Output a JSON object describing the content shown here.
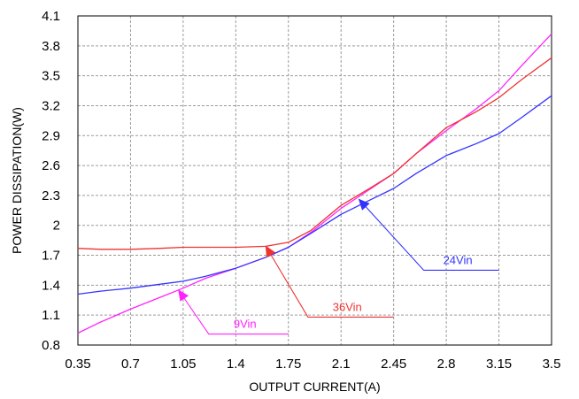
{
  "chart_data": {
    "type": "line",
    "title": "",
    "xlabel": "OUTPUT CURRENT(A)",
    "ylabel": "POWER DISSIPATION(W)",
    "xlim": [
      0.35,
      3.5
    ],
    "ylim": [
      0.8,
      4.1
    ],
    "grid": true,
    "xticks": [
      "0.35",
      "0.7",
      "1.05",
      "1.4",
      "1.75",
      "2.1",
      "2.45",
      "2.8",
      "3.15",
      "3.5"
    ],
    "yticks": [
      "4.1",
      "3.8",
      "3.5",
      "3.2",
      "2.9",
      "2.6",
      "2.3",
      "2",
      "1.7",
      "1.4",
      "1.1",
      "0.8"
    ],
    "series": [
      {
        "name": "9Vin",
        "color": "#ff22ff",
        "x": [
          0.35,
          0.5,
          0.7,
          0.9,
          1.05,
          1.2,
          1.4,
          1.6,
          1.75,
          1.9,
          2.1,
          2.3,
          2.45,
          2.6,
          2.8,
          3.0,
          3.15,
          3.3,
          3.5
        ],
        "y": [
          0.92,
          1.03,
          1.16,
          1.28,
          1.37,
          1.47,
          1.57,
          1.68,
          1.78,
          1.93,
          2.17,
          2.37,
          2.52,
          2.72,
          2.95,
          3.17,
          3.35,
          3.6,
          3.92
        ]
      },
      {
        "name": "24Vin",
        "color": "#3333ff",
        "x": [
          0.35,
          0.5,
          0.7,
          0.9,
          1.05,
          1.2,
          1.4,
          1.6,
          1.75,
          1.9,
          2.1,
          2.3,
          2.45,
          2.6,
          2.8,
          3.0,
          3.15,
          3.3,
          3.5
        ],
        "y": [
          1.31,
          1.34,
          1.37,
          1.41,
          1.44,
          1.49,
          1.57,
          1.68,
          1.78,
          1.92,
          2.11,
          2.26,
          2.37,
          2.52,
          2.7,
          2.82,
          2.92,
          3.08,
          3.3
        ]
      },
      {
        "name": "36Vin",
        "color": "#ee3333",
        "x": [
          0.35,
          0.5,
          0.7,
          0.9,
          1.05,
          1.2,
          1.4,
          1.6,
          1.75,
          1.9,
          2.1,
          2.3,
          2.45,
          2.6,
          2.8,
          3.0,
          3.15,
          3.3,
          3.5
        ],
        "y": [
          1.77,
          1.76,
          1.76,
          1.77,
          1.78,
          1.78,
          1.78,
          1.79,
          1.83,
          1.95,
          2.2,
          2.38,
          2.52,
          2.72,
          2.98,
          3.14,
          3.28,
          3.46,
          3.68
        ]
      }
    ],
    "annotations": [
      {
        "label": "9Vin",
        "color": "#ff22ff",
        "point": [
          1.02,
          1.35
        ],
        "elbow": [
          1.22,
          0.91
        ],
        "end": [
          1.75,
          0.91
        ]
      },
      {
        "label": "36Vin",
        "color": "#ee3333",
        "point": [
          1.6,
          1.79
        ],
        "elbow": [
          1.88,
          1.08
        ],
        "end": [
          2.45,
          1.08
        ]
      },
      {
        "label": "24Vin",
        "color": "#3333ff",
        "point": [
          2.22,
          2.26
        ],
        "elbow": [
          2.65,
          1.55
        ],
        "end": [
          3.15,
          1.55
        ]
      }
    ]
  }
}
